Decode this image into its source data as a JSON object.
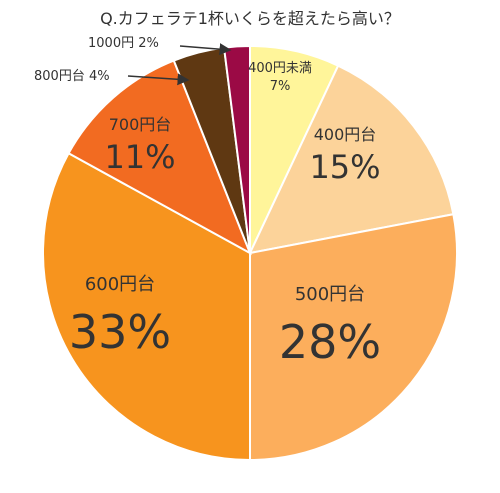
{
  "chart_data": {
    "type": "pie",
    "title": "Q.カフェラテ1杯いくらを超えたら高い？",
    "start": "top",
    "direction": "clockwise",
    "slices": [
      {
        "label": "400円未満",
        "value": 7,
        "value_label": "7%",
        "color": "#FFF59A"
      },
      {
        "label": "400円台",
        "value": 15,
        "value_label": "15%",
        "color": "#FCD39A"
      },
      {
        "label": "500円台",
        "value": 28,
        "value_label": "28%",
        "color": "#FCAE5C"
      },
      {
        "label": "600円台",
        "value": 33,
        "value_label": "33%",
        "color": "#F7941E"
      },
      {
        "label": "700円台",
        "value": 11,
        "value_label": "11%",
        "color": "#F26B21"
      },
      {
        "label": "800円台",
        "value": 4,
        "value_label": "4%",
        "color": "#5F3812"
      },
      {
        "label": "1000円",
        "value": 2,
        "value_label": "2%",
        "color": "#9B0A45"
      }
    ]
  }
}
